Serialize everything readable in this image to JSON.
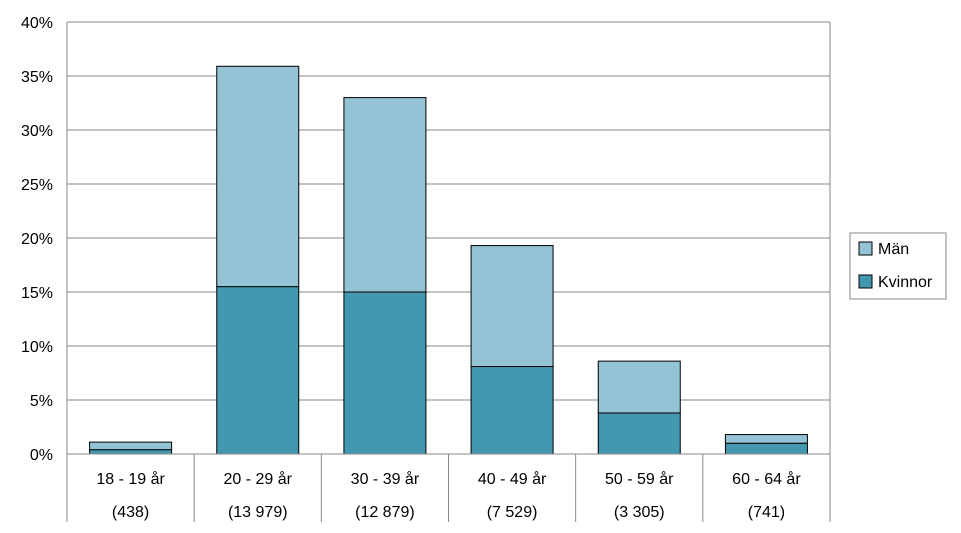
{
  "chart_data": {
    "type": "bar",
    "stacked": true,
    "categories": [
      {
        "label": "18 - 19 år",
        "count": "(438)"
      },
      {
        "label": "20 - 29 år",
        "count": "(13 979)"
      },
      {
        "label": "30 - 39 år",
        "count": "(12 879)"
      },
      {
        "label": "40 - 49 år",
        "count": "(7 529)"
      },
      {
        "label": "50 - 59 år",
        "count": "(3 305)"
      },
      {
        "label": "60 - 64 år",
        "count": "(741)"
      }
    ],
    "series": [
      {
        "name": "Kvinnor",
        "color": "#4398b0",
        "values": [
          0.4,
          15.5,
          15.0,
          8.1,
          3.8,
          1.0
        ]
      },
      {
        "name": "Män",
        "color": "#94c3d5",
        "values": [
          0.7,
          20.4,
          18.0,
          11.2,
          4.8,
          0.8
        ]
      }
    ],
    "legend_order": [
      "Män",
      "Kvinnor"
    ],
    "legend_position": "right",
    "ylim": [
      0,
      40
    ],
    "yticks": [
      0,
      5,
      10,
      15,
      20,
      25,
      30,
      35,
      40
    ],
    "ytick_suffix": "%",
    "grid": true,
    "title": "",
    "xlabel": "",
    "ylabel": ""
  }
}
